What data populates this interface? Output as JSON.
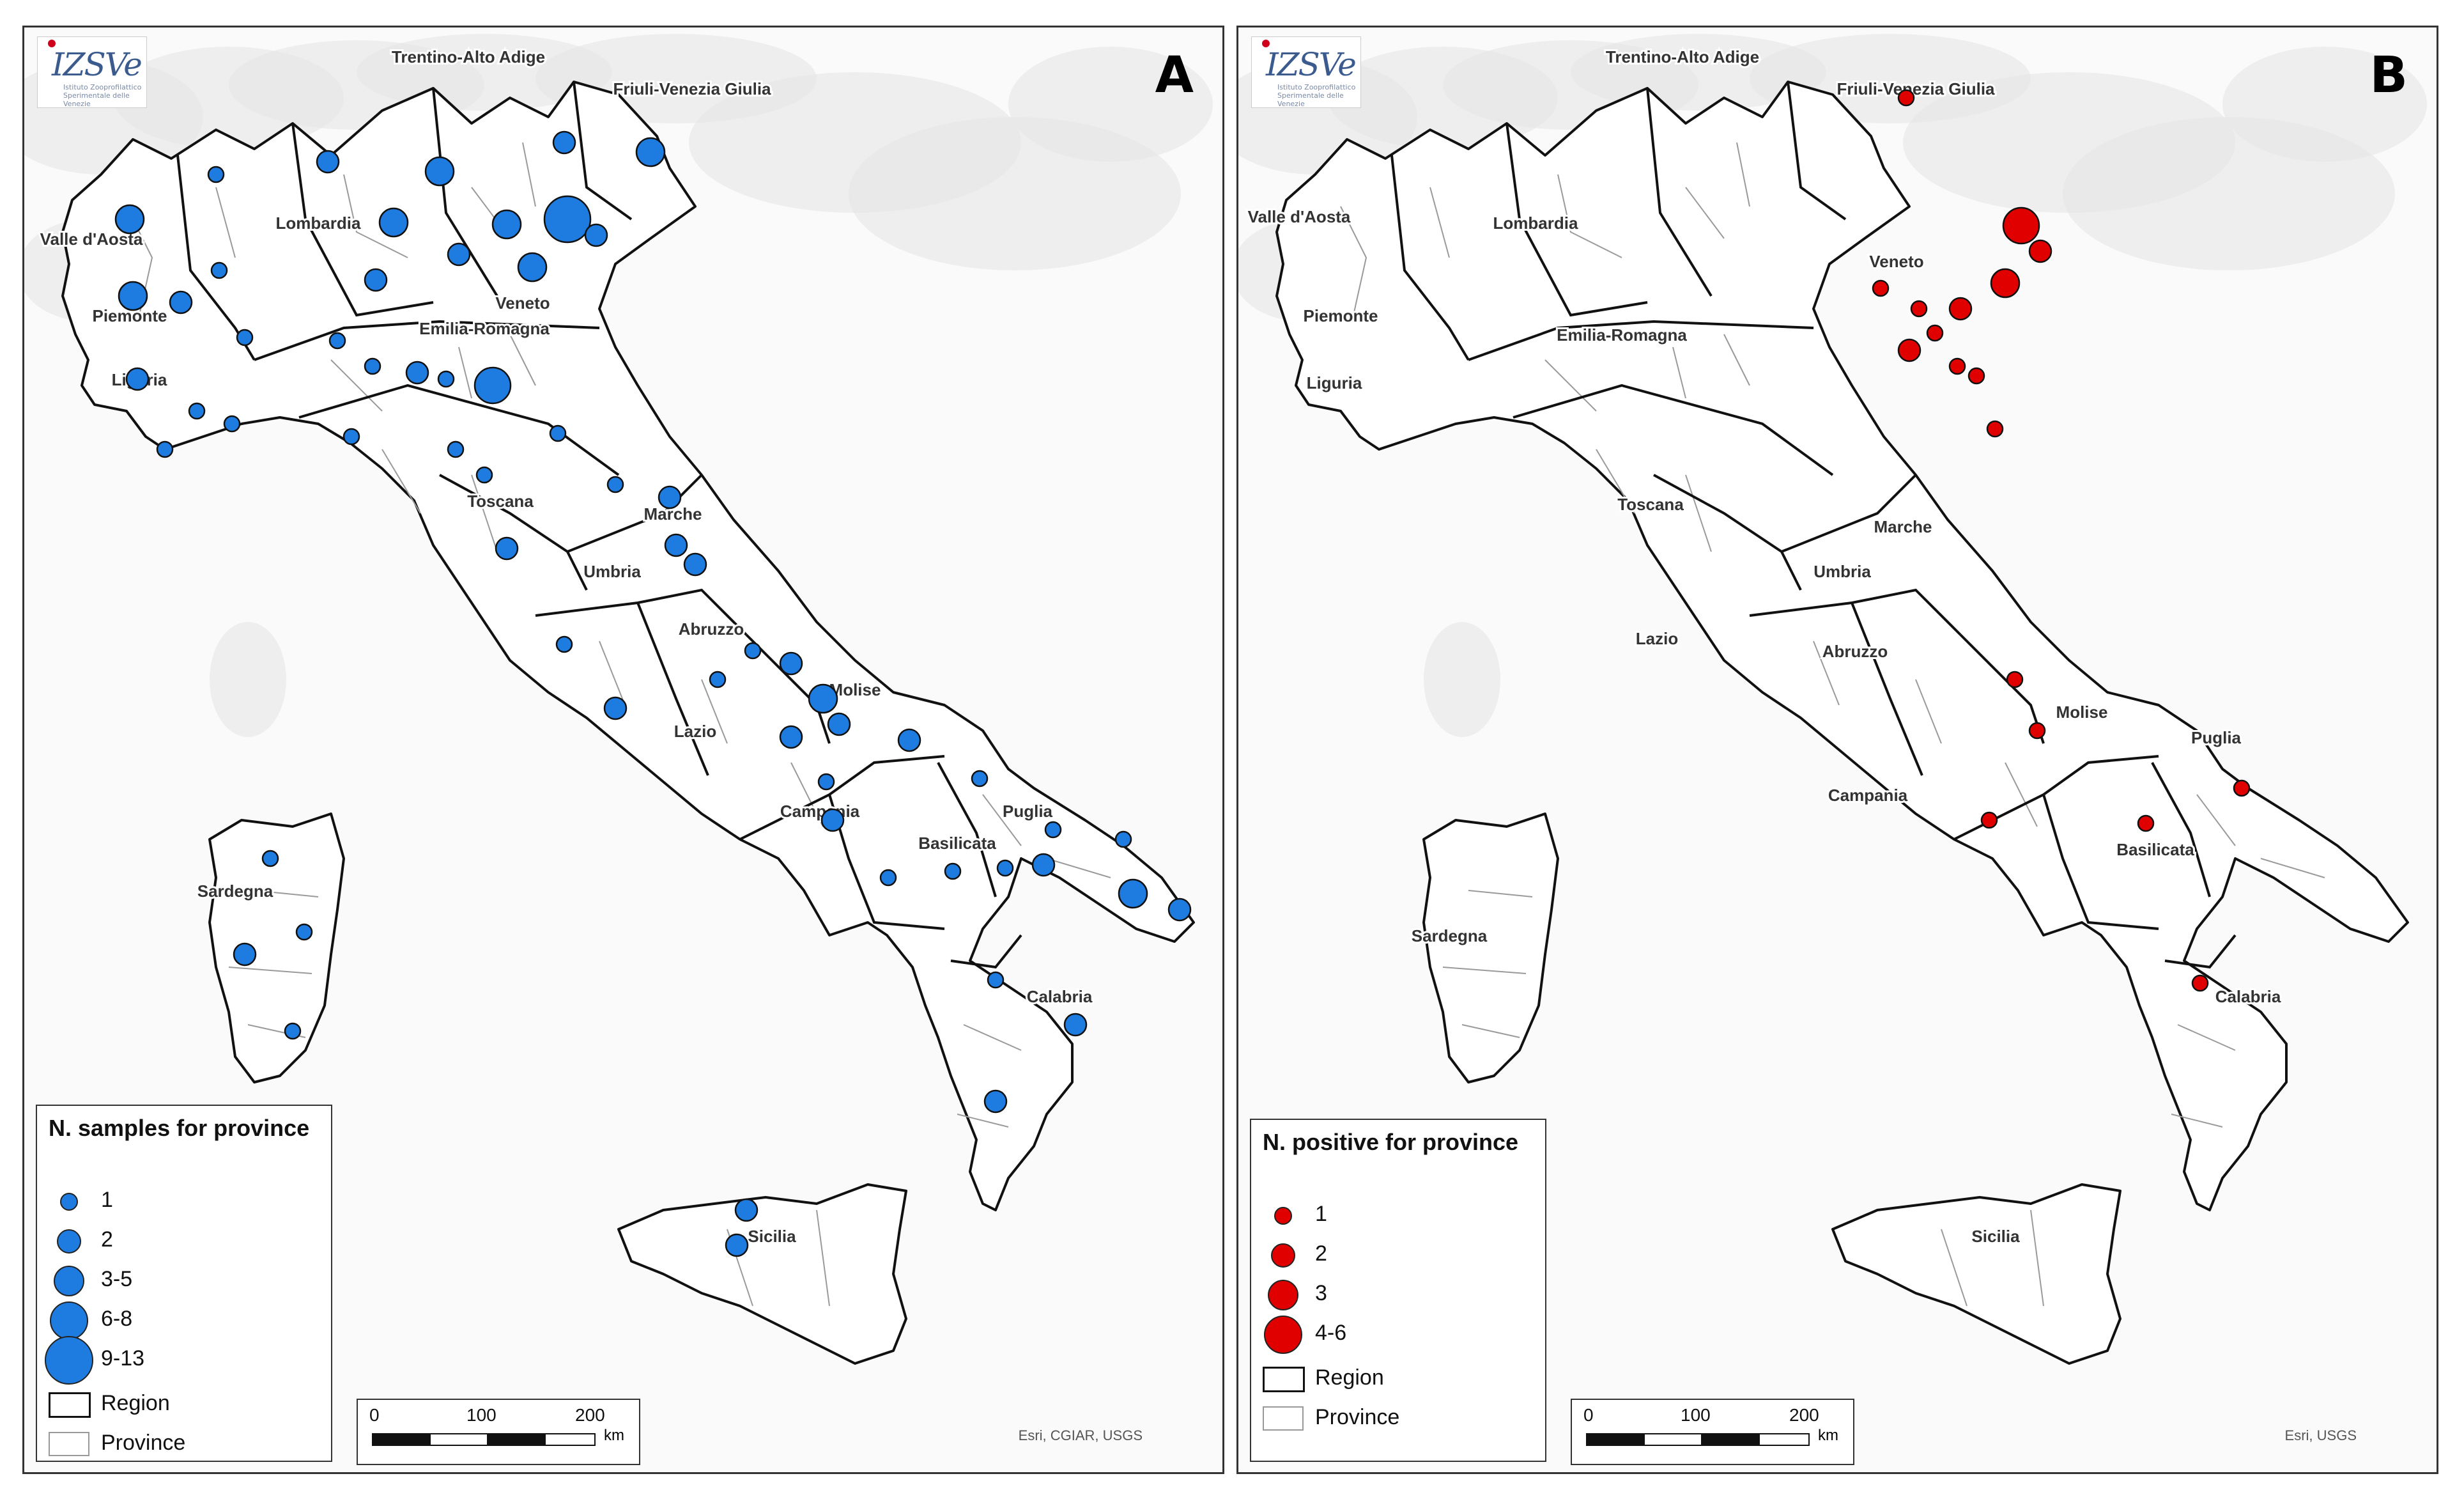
{
  "panels": [
    {
      "id": "A",
      "letter": "A",
      "credit": "Esri, CGIAR, USGS",
      "legend": {
        "title": "N. samples for province",
        "classes": [
          {
            "label": "1",
            "size": 1
          },
          {
            "label": "2",
            "size": 2
          },
          {
            "label": "3-5",
            "size": 3
          },
          {
            "label": "6-8",
            "size": 4
          },
          {
            "label": "9-13",
            "size": 5
          }
        ],
        "region_label": "Region",
        "province_label": "Province",
        "symbol_color": "#1e7be0"
      },
      "scalebar": {
        "ticks": [
          "0",
          "100",
          "200"
        ],
        "unit": "km"
      },
      "region_labels": [
        "Trentino-Alto Adige",
        "Friuli-Venezia Giulia",
        "Valle d'Aosta",
        "Lombardia",
        "Piemonte",
        "Veneto",
        "Emilia-Romagna",
        "Liguria",
        "Toscana",
        "Marche",
        "Umbria",
        "Abruzzo",
        "Molise",
        "Lazio",
        "Campania",
        "Puglia",
        "Basilicata",
        "Sardegna",
        "Calabria",
        "Sicilia"
      ]
    },
    {
      "id": "B",
      "letter": "B",
      "credit": "Esri, USGS",
      "legend": {
        "title": "N. positive for province",
        "classes": [
          {
            "label": "1",
            "size": 1
          },
          {
            "label": "2",
            "size": 2
          },
          {
            "label": "3",
            "size": 3
          },
          {
            "label": "4-6",
            "size": 4
          }
        ],
        "region_label": "Region",
        "province_label": "Province",
        "symbol_color": "#e00000"
      },
      "scalebar": {
        "ticks": [
          "0",
          "100",
          "200"
        ],
        "unit": "km"
      },
      "region_labels": [
        "Trentino-Alto Adige",
        "Friuli-Venezia Giulia",
        "Valle d'Aosta",
        "Lombardia",
        "Veneto",
        "Piemonte",
        "Emilia-Romagna",
        "Liguria",
        "Toscana",
        "Marche",
        "Umbria",
        "Lazio",
        "Abruzzo",
        "Molise",
        "Puglia",
        "Campania",
        "Basilicata",
        "Sardegna",
        "Calabria",
        "Sicilia"
      ]
    }
  ],
  "logo": {
    "mark": "IZSVe",
    "subtitle": "Istituto Zooprofilattico Sperimentale delle Venezie"
  },
  "colors": {
    "region_border": "#111111",
    "province_border": "#9a9a9a",
    "land": "#ffffff",
    "relief": "#e6e6e6"
  }
}
